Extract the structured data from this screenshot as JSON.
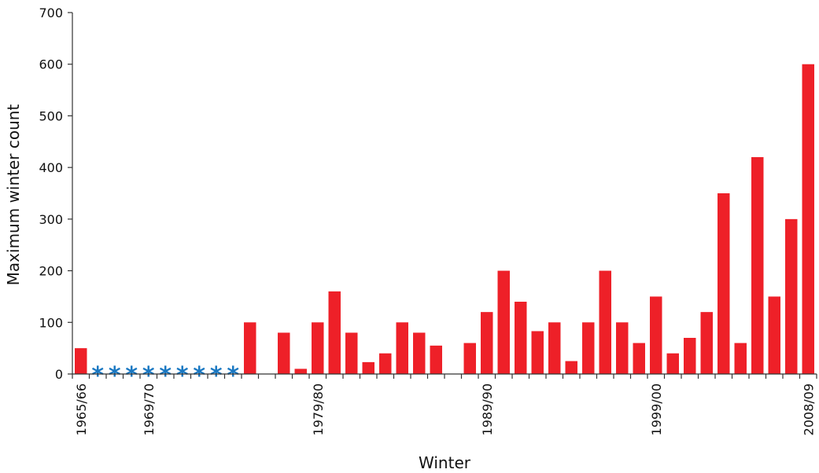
{
  "colors": {
    "bar": "#ee2028",
    "missing_marker": "#1a78c2",
    "axis": "#333333"
  },
  "chart_data": {
    "type": "bar",
    "xlabel": "Winter",
    "ylabel": "Maximum winter count",
    "ylim": [
      0,
      700
    ],
    "yticks": [
      0,
      100,
      200,
      300,
      400,
      500,
      600,
      700
    ],
    "grid": false,
    "legend": "none",
    "categories": [
      "1965/66",
      "1966/67",
      "1967/68",
      "1968/69",
      "1969/70",
      "1970/71",
      "1971/72",
      "1972/73",
      "1973/74",
      "1974/75",
      "1975/76",
      "1976/77",
      "1977/78",
      "1978/79",
      "1979/80",
      "1980/81",
      "1981/82",
      "1982/83",
      "1983/84",
      "1984/85",
      "1985/86",
      "1986/87",
      "1987/88",
      "1988/89",
      "1989/90",
      "1990/91",
      "1991/92",
      "1992/93",
      "1993/94",
      "1994/95",
      "1995/96",
      "1996/97",
      "1997/98",
      "1998/99",
      "1999/00",
      "2000/01",
      "2001/02",
      "2002/03",
      "2003/04",
      "2004/05",
      "2005/06",
      "2006/07",
      "2007/08",
      "2008/09"
    ],
    "values": [
      50,
      null,
      null,
      null,
      null,
      null,
      null,
      null,
      null,
      null,
      100,
      0,
      80,
      10,
      100,
      160,
      80,
      23,
      40,
      100,
      80,
      55,
      0,
      60,
      120,
      200,
      140,
      83,
      100,
      25,
      100,
      200,
      100,
      60,
      150,
      40,
      70,
      120,
      350,
      60,
      420,
      150,
      300,
      600
    ],
    "missing_marker": "*",
    "labeled_categories": [
      "1965/66",
      "1969/70",
      "1979/80",
      "1989/90",
      "1999/00",
      "2008/09"
    ]
  }
}
